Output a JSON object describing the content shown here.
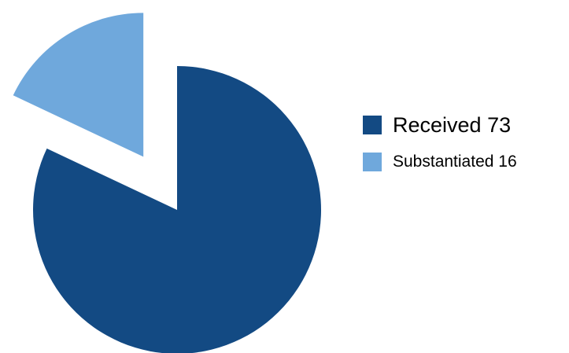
{
  "chart_data": {
    "type": "pie",
    "title": "",
    "slices": [
      {
        "label": "Received",
        "value": 73,
        "color": "#134a83",
        "legend_text": "Received 73"
      },
      {
        "label": "Substantiated",
        "value": 16,
        "color": "#6fa8dc",
        "legend_text": "Substantiated 16"
      }
    ],
    "exploded": "Substantiated",
    "legend_position": "right"
  },
  "legend": {
    "items": [
      {
        "text": "Received 73",
        "color": "#134a83"
      },
      {
        "text": "Substantiated 16",
        "color": "#6fa8dc"
      }
    ]
  }
}
